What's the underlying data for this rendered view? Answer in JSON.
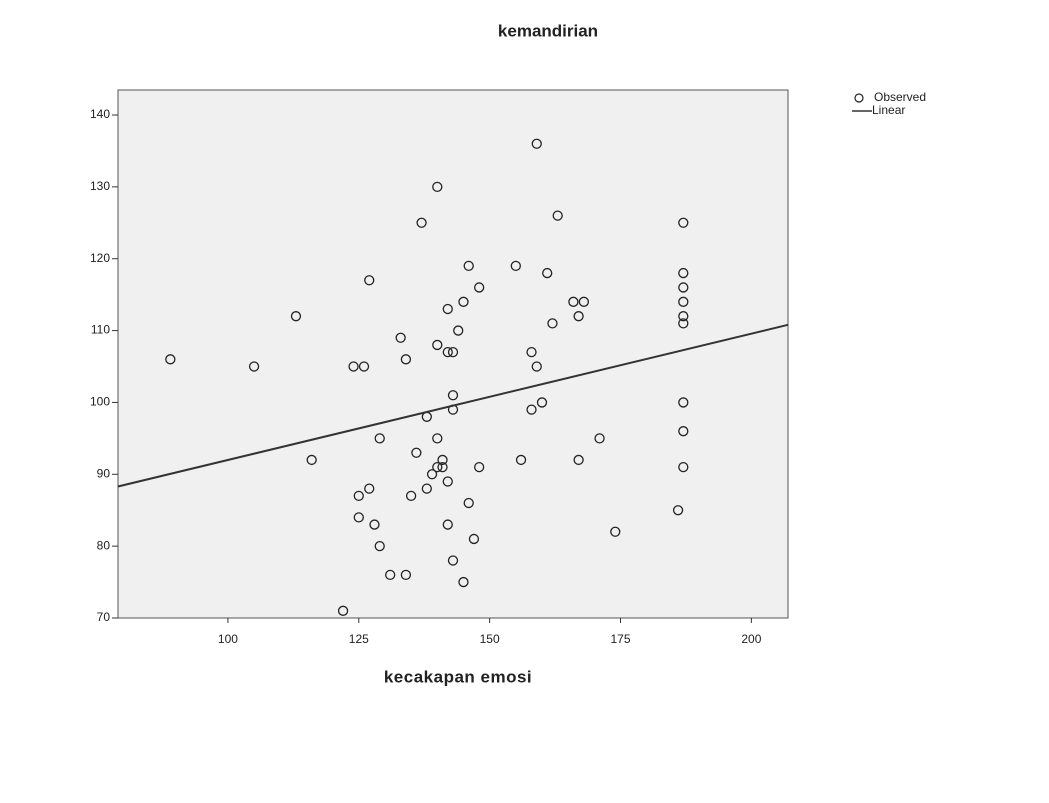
{
  "chart_data": {
    "type": "scatter",
    "title": "kemandirian",
    "x_label": "kecakapan emosi",
    "xlim": [
      79,
      207
    ],
    "ylim": [
      70,
      140
    ],
    "xticks": [
      100,
      125,
      150,
      175,
      200
    ],
    "yticks": [
      70,
      80,
      90,
      100,
      110,
      120,
      130,
      140
    ],
    "series": [
      {
        "name": "Observed",
        "mode": "markers",
        "color": "#222222",
        "x": [
          89,
          105,
          113,
          116,
          124,
          126,
          127,
          125,
          125,
          127,
          128,
          129,
          129,
          122,
          131,
          134,
          133,
          134,
          135,
          136,
          137,
          138,
          138,
          139,
          140,
          140,
          140,
          140,
          141,
          141,
          142,
          142,
          142,
          142,
          143,
          143,
          143,
          143,
          144,
          145,
          145,
          146,
          146,
          147,
          148,
          148,
          155,
          156,
          158,
          158,
          159,
          159,
          160,
          161,
          162,
          163,
          166,
          167,
          167,
          168,
          171,
          174,
          186,
          187,
          187,
          187,
          187,
          187,
          187,
          187,
          187,
          187
        ],
        "values": [
          106,
          105,
          112,
          92,
          105,
          105,
          117,
          87,
          84,
          88,
          83,
          95,
          80,
          71,
          76,
          76,
          109,
          106,
          87,
          93,
          125,
          98,
          88,
          90,
          130,
          108,
          95,
          91,
          92,
          91,
          113,
          89,
          83,
          107,
          107,
          101,
          99,
          78,
          110,
          75,
          114,
          119,
          86,
          81,
          116,
          91,
          119,
          92,
          107,
          99,
          136,
          105,
          100,
          118,
          111,
          126,
          114,
          112,
          92,
          114,
          95,
          82,
          85,
          125,
          118,
          116,
          114,
          112,
          111,
          100,
          96,
          91
        ]
      },
      {
        "name": "Linear",
        "mode": "line",
        "color": "#333333",
        "x": [
          79,
          207
        ],
        "values": [
          88.3,
          110.8
        ]
      }
    ],
    "legend": "top-right"
  }
}
